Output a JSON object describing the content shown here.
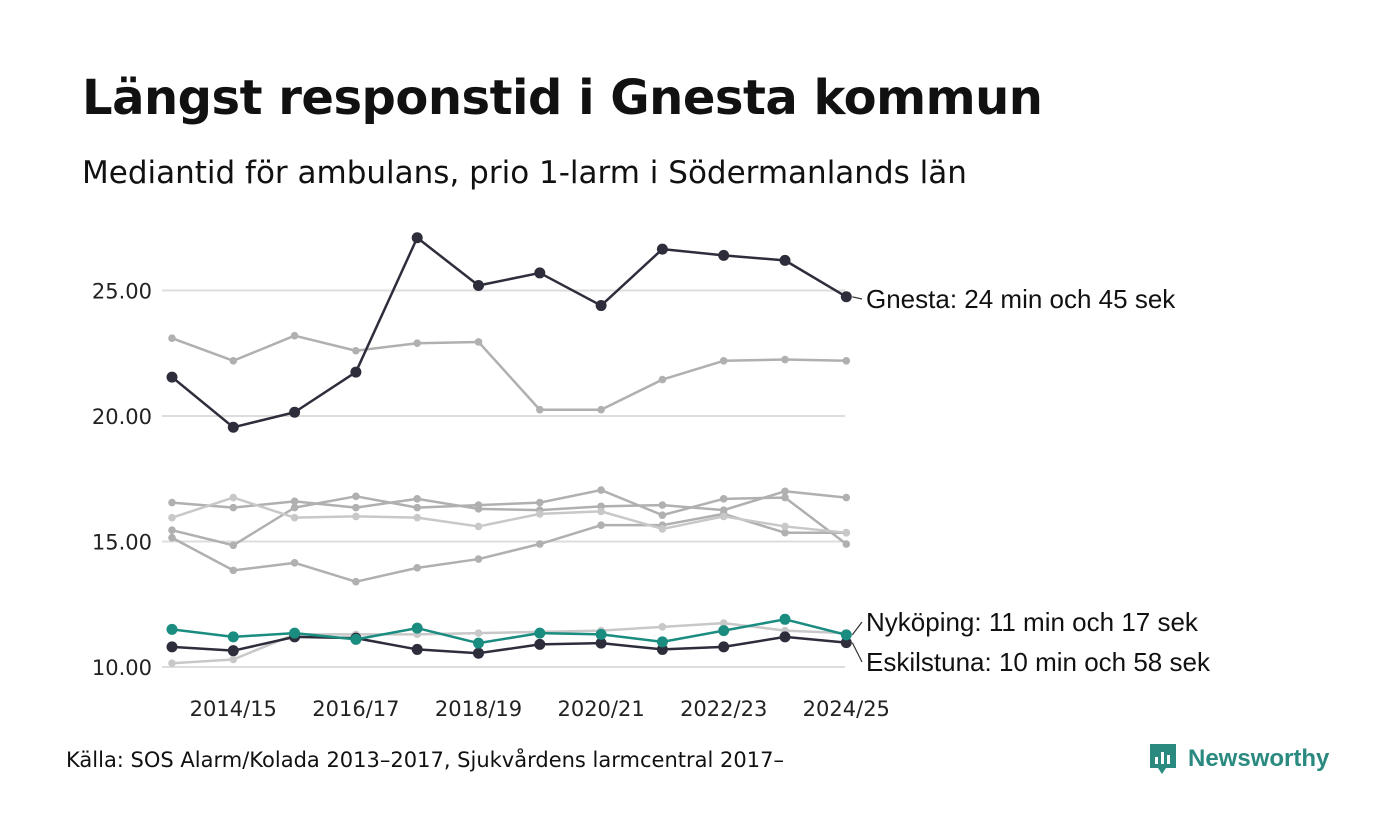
{
  "title": "Längst responstid i Gnesta kommun",
  "subtitle": "Mediantid för ambulans, prio 1-larm i Södermanlands län",
  "source": "Källa: SOS Alarm/Kolada 2013–2017, Sjukvårdens larmcentral 2017–",
  "brand": {
    "name": "Newsworthy",
    "icon": "newsworthy-logo-icon",
    "color": "#2a8a80"
  },
  "colors": {
    "highlight_dark": "#2d2d3c",
    "highlight_teal": "#1a8c80",
    "background_line": "#b0b0b0",
    "background_line_light": "#c8c8c8",
    "grid": "#dddddd"
  },
  "chart_data": {
    "type": "line",
    "title": "Längst responstid i Gnesta kommun",
    "subtitle": "Mediantid för ambulans, prio 1-larm i Södermanlands län",
    "xlabel": "",
    "ylabel": "",
    "x": [
      "2013/14",
      "2014/15",
      "2015/16",
      "2016/17",
      "2017/18",
      "2018/19",
      "2019/20",
      "2020/21",
      "2021/22",
      "2022/23",
      "2023/24",
      "2024/25"
    ],
    "x_tick_labels": [
      "2014/15",
      "2016/17",
      "2018/19",
      "2020/21",
      "2022/23",
      "2024/25"
    ],
    "y_ticks": [
      10,
      15,
      20,
      25
    ],
    "y_tick_labels": [
      "10.00",
      "15.00",
      "20.00",
      "25.00"
    ],
    "ylim": [
      10,
      27.5
    ],
    "grid": true,
    "series": [
      {
        "name": "",
        "style": "background",
        "values": [
          23.1,
          22.2,
          23.2,
          22.6,
          22.9,
          22.95,
          20.25,
          20.25,
          21.45,
          22.2,
          22.25,
          22.2
        ]
      },
      {
        "name": "",
        "style": "background",
        "values": [
          16.55,
          16.35,
          16.6,
          16.35,
          16.7,
          16.3,
          16.25,
          16.4,
          16.45,
          16.25,
          17.0,
          16.75
        ]
      },
      {
        "name": "",
        "style": "background_light",
        "values": [
          15.95,
          16.75,
          15.95,
          16.0,
          15.95,
          15.6,
          16.1,
          16.2,
          15.5,
          16.0,
          15.6,
          15.35
        ]
      },
      {
        "name": "",
        "style": "background",
        "values": [
          15.45,
          14.85,
          16.35,
          16.8,
          16.35,
          16.45,
          16.55,
          17.05,
          16.05,
          16.7,
          16.75,
          14.9
        ]
      },
      {
        "name": "",
        "style": "background",
        "values": [
          15.15,
          13.85,
          14.15,
          13.4,
          13.95,
          14.3,
          14.9,
          15.65,
          15.65,
          16.1,
          15.35,
          15.35
        ]
      },
      {
        "name": "",
        "style": "background_light",
        "values": [
          10.15,
          10.3,
          11.3,
          11.3,
          11.3,
          11.35,
          11.4,
          11.45,
          11.6,
          11.75,
          11.45,
          11.35
        ]
      },
      {
        "name": "Gnesta",
        "style": "dark",
        "label": "Gnesta: 24 min och 45 sek",
        "values": [
          21.55,
          19.55,
          20.15,
          21.75,
          27.1,
          25.2,
          25.7,
          24.4,
          26.65,
          26.4,
          26.2,
          24.75
        ]
      },
      {
        "name": "Eskilstuna",
        "style": "dark",
        "label": "Eskilstuna: 10 min och 58 sek",
        "values": [
          10.8,
          10.65,
          11.2,
          11.15,
          10.7,
          10.55,
          10.9,
          10.95,
          10.7,
          10.8,
          11.2,
          10.97
        ]
      },
      {
        "name": "Nyköping",
        "style": "teal",
        "label": "Nyköping: 11 min och 17 sek",
        "values": [
          11.5,
          11.2,
          11.35,
          11.1,
          11.55,
          10.95,
          11.35,
          11.3,
          11.0,
          11.45,
          11.9,
          11.28
        ]
      }
    ]
  }
}
